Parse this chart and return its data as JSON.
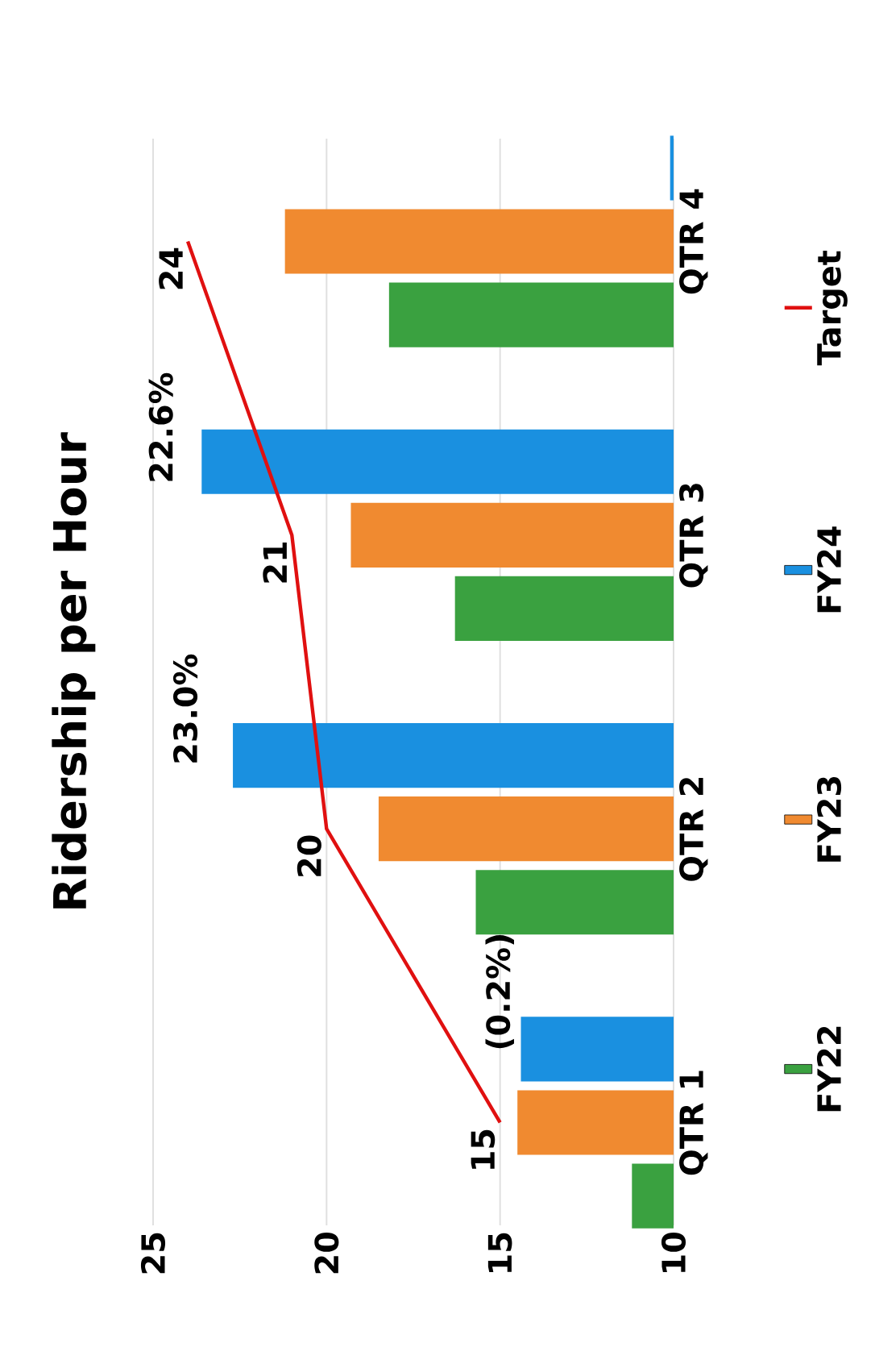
{
  "chart_data": {
    "type": "bar",
    "orientation": "horizontal",
    "title": "Ridership per Hour",
    "categories": [
      "QTR 4",
      "QTR 3",
      "QTR 2",
      "QTR 1"
    ],
    "series": [
      {
        "name": "FY22",
        "color": "#3aa140",
        "values": [
          18.2,
          16.3,
          15.7,
          11.2
        ]
      },
      {
        "name": "FY23",
        "color": "#f08a30",
        "values": [
          21.2,
          19.3,
          18.5,
          14.5
        ]
      },
      {
        "name": "FY24",
        "color": "#1a90e0",
        "values": [
          10.1,
          23.6,
          22.7,
          14.4
        ]
      },
      {
        "name": "Target",
        "type": "line",
        "color": "#e01010",
        "values": [
          24,
          21,
          20,
          15
        ],
        "value_labels": [
          "24",
          "21",
          "20",
          "15"
        ]
      }
    ],
    "annotations": [
      "(0.2%)",
      "23.0%",
      "22.6%"
    ],
    "xlim": [
      25,
      10
    ],
    "xticks": [
      25,
      20,
      15,
      10
    ],
    "grid": "x",
    "legend": "right"
  }
}
